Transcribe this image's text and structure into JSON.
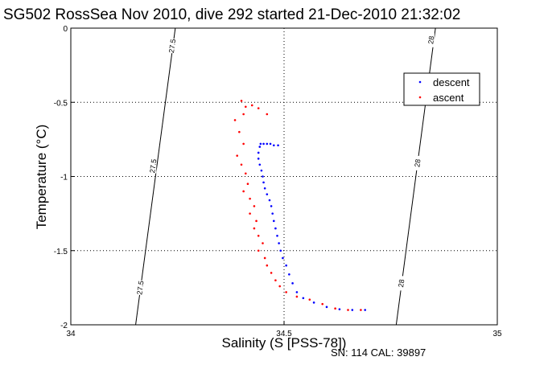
{
  "chart_data": {
    "type": "scatter",
    "title": "SG502 RossSea Nov 2010, dive 292 started 21-Dec-2010 21:32:02",
    "xlabel": "Salinity (S [PSS-78])",
    "ylabel": "Temperature (°C)",
    "xlim": [
      34,
      35
    ],
    "ylim": [
      -2,
      0
    ],
    "x_ticks": [
      "34",
      "34.5",
      "35"
    ],
    "y_ticks": [
      "0",
      "-0.5",
      "-1",
      "-1.5",
      "-2"
    ],
    "grid": "dotted",
    "legend_position": "top-right",
    "footer": "SN: 114  CAL: 39897",
    "isopycnals": [
      {
        "label": "27.5",
        "line": [
          [
            34.152,
            -2
          ],
          [
            34.245,
            0
          ]
        ],
        "label_positions": [
          [
            34.238,
            -0.12
          ],
          [
            34.193,
            -0.93
          ],
          [
            34.163,
            -1.75
          ]
        ]
      },
      {
        "label": "28",
        "line": [
          [
            34.763,
            -2
          ],
          [
            34.855,
            0
          ]
        ],
        "label_positions": [
          [
            34.845,
            -0.08
          ],
          [
            34.813,
            -0.91
          ],
          [
            34.775,
            -1.72
          ]
        ]
      }
    ],
    "series": [
      {
        "name": "descent",
        "color": "#0000ff",
        "points": [
          [
            34.445,
            -0.78
          ],
          [
            34.452,
            -0.78
          ],
          [
            34.46,
            -0.78
          ],
          [
            34.468,
            -0.78
          ],
          [
            34.476,
            -0.79
          ],
          [
            34.486,
            -0.79
          ],
          [
            34.443,
            -0.8
          ],
          [
            34.44,
            -0.84
          ],
          [
            34.44,
            -0.88
          ],
          [
            34.443,
            -0.92
          ],
          [
            34.447,
            -0.96
          ],
          [
            34.45,
            -1.0
          ],
          [
            34.452,
            -1.04
          ],
          [
            34.455,
            -1.08
          ],
          [
            34.46,
            -1.12
          ],
          [
            34.466,
            -1.16
          ],
          [
            34.47,
            -1.2
          ],
          [
            34.473,
            -1.25
          ],
          [
            34.476,
            -1.3
          ],
          [
            34.48,
            -1.35
          ],
          [
            34.484,
            -1.4
          ],
          [
            34.488,
            -1.45
          ],
          [
            34.492,
            -1.5
          ],
          [
            34.497,
            -1.55
          ],
          [
            34.505,
            -1.6
          ],
          [
            34.512,
            -1.66
          ],
          [
            34.52,
            -1.72
          ],
          [
            34.53,
            -1.78
          ],
          [
            34.545,
            -1.82
          ],
          [
            34.57,
            -1.85
          ],
          [
            34.6,
            -1.88
          ],
          [
            34.63,
            -1.895
          ],
          [
            34.66,
            -1.9
          ],
          [
            34.69,
            -1.9
          ]
        ]
      },
      {
        "name": "ascent",
        "color": "#ff0000",
        "points": [
          [
            34.4,
            -0.49
          ],
          [
            34.41,
            -0.53
          ],
          [
            34.425,
            -0.52
          ],
          [
            34.44,
            -0.54
          ],
          [
            34.46,
            -0.58
          ],
          [
            34.405,
            -0.58
          ],
          [
            34.385,
            -0.62
          ],
          [
            34.395,
            -0.7
          ],
          [
            34.405,
            -0.78
          ],
          [
            34.39,
            -0.86
          ],
          [
            34.4,
            -0.92
          ],
          [
            34.41,
            -0.98
          ],
          [
            34.415,
            -1.05
          ],
          [
            34.405,
            -1.1
          ],
          [
            34.42,
            -1.15
          ],
          [
            34.43,
            -1.2
          ],
          [
            34.42,
            -1.25
          ],
          [
            34.435,
            -1.3
          ],
          [
            34.43,
            -1.35
          ],
          [
            34.44,
            -1.4
          ],
          [
            34.45,
            -1.45
          ],
          [
            34.44,
            -1.5
          ],
          [
            34.455,
            -1.55
          ],
          [
            34.46,
            -1.6
          ],
          [
            34.47,
            -1.65
          ],
          [
            34.48,
            -1.7
          ],
          [
            34.49,
            -1.74
          ],
          [
            34.505,
            -1.78
          ],
          [
            34.53,
            -1.81
          ],
          [
            34.56,
            -1.83
          ],
          [
            34.59,
            -1.86
          ],
          [
            34.62,
            -1.89
          ],
          [
            34.65,
            -1.9
          ],
          [
            34.68,
            -1.9
          ]
        ]
      }
    ]
  }
}
